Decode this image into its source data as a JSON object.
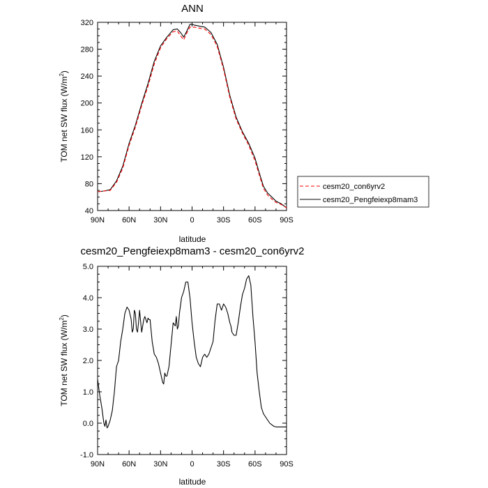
{
  "chart_data": [
    {
      "type": "line",
      "title": "ANN",
      "xlabel": "latitude",
      "ylabel_main": "TOM net SW flux (W/m",
      "ylabel_sup": "2",
      "ylabel_tail": ")",
      "xlim": [
        90,
        -90
      ],
      "ylim": [
        40,
        320
      ],
      "xticks": [
        90,
        60,
        30,
        0,
        -30,
        -60,
        -90
      ],
      "xtick_labels": [
        "90N",
        "60N",
        "30N",
        "0",
        "30S",
        "60S",
        "90S"
      ],
      "yticks": [
        40,
        80,
        120,
        160,
        200,
        240,
        280,
        320
      ],
      "ytick_labels": [
        "40",
        "80",
        "120",
        "160",
        "200",
        "240",
        "280",
        "320"
      ],
      "legend_position": "right",
      "series": [
        {
          "name": "cesm20_con6yrv2",
          "color": "#ff0000",
          "dash": "dashed",
          "x": [
            90,
            84,
            78,
            72,
            66,
            60,
            54,
            48,
            42,
            36,
            30,
            24,
            18,
            14,
            11,
            8,
            5,
            2,
            0,
            -2,
            -5,
            -8,
            -12,
            -18,
            -24,
            -30,
            -36,
            -42,
            -48,
            -54,
            -60,
            -64,
            -68,
            -72,
            -76,
            -80,
            -85,
            -90
          ],
          "y": [
            68,
            69,
            70,
            82,
            103,
            137,
            164,
            196,
            225,
            258,
            282,
            296,
            306,
            307,
            300,
            294,
            304,
            313,
            312,
            313,
            312,
            311,
            310,
            302,
            284,
            250,
            208,
            176,
            155,
            137,
            114,
            93,
            73,
            63,
            57,
            52,
            49,
            44
          ]
        },
        {
          "name": "cesm20_Pengfeiexp8mam3",
          "color": "#000000",
          "dash": "solid",
          "x": [
            90,
            84,
            78,
            72,
            66,
            60,
            54,
            48,
            42,
            36,
            30,
            24,
            18,
            14,
            11,
            8,
            5,
            2,
            0,
            -2,
            -5,
            -8,
            -12,
            -18,
            -24,
            -30,
            -36,
            -42,
            -48,
            -54,
            -60,
            -64,
            -68,
            -72,
            -76,
            -80,
            -85,
            -90
          ],
          "y": [
            68,
            69,
            71,
            84,
            106,
            140,
            167,
            199,
            229,
            262,
            285,
            298,
            309,
            310,
            305,
            298,
            307,
            317,
            317,
            316,
            315,
            314,
            313,
            305,
            287,
            253,
            211,
            179,
            157,
            140,
            118,
            96,
            76,
            66,
            60,
            54,
            50,
            44
          ]
        }
      ]
    },
    {
      "type": "line",
      "title": "cesm20_Pengfeiexp8mam3 - cesm20_con6yrv2",
      "xlabel": "latitude",
      "ylabel_main": "TOM net SW flux (W/m",
      "ylabel_sup": "2",
      "ylabel_tail": ")",
      "xlim": [
        90,
        -90
      ],
      "ylim": [
        -1,
        5
      ],
      "xticks": [
        90,
        60,
        30,
        0,
        -30,
        -60,
        -90
      ],
      "xtick_labels": [
        "90N",
        "60N",
        "30N",
        "0",
        "30S",
        "60S",
        "90S"
      ],
      "yticks": [
        -1,
        0,
        1,
        2,
        3,
        4,
        5
      ],
      "ytick_labels": [
        "-1.0",
        "0.0",
        "1.0",
        "2.0",
        "3.0",
        "4.0",
        "5.0"
      ],
      "series": [
        {
          "color": "#000000",
          "dash": "solid",
          "x": [
            90,
            88,
            86,
            84,
            83,
            82,
            81,
            80,
            78,
            76,
            74,
            72,
            70,
            68,
            66,
            64,
            62,
            60,
            58,
            57,
            56,
            55,
            54,
            53,
            52,
            51,
            50,
            48,
            46,
            45,
            44,
            43,
            42,
            41,
            40,
            38,
            36,
            34,
            32,
            30,
            28,
            27,
            26,
            25,
            24,
            22,
            20,
            18,
            16,
            15,
            14,
            13,
            12,
            10,
            8,
            6,
            4,
            2,
            0,
            -2,
            -4,
            -6,
            -8,
            -10,
            -12,
            -14,
            -16,
            -18,
            -20,
            -22,
            -24,
            -26,
            -28,
            -30,
            -32,
            -34,
            -36,
            -37,
            -38,
            -40,
            -42,
            -44,
            -46,
            -48,
            -50,
            -52,
            -54,
            -56,
            -58,
            -60,
            -62,
            -64,
            -66,
            -68,
            -70,
            -72,
            -74,
            -76,
            -78,
            -80,
            -84,
            -88,
            -90
          ],
          "y": [
            1.4,
            0.9,
            0.5,
            0.0,
            -0.1,
            0.1,
            -0.15,
            -0.1,
            0.1,
            0.4,
            1.0,
            1.8,
            2.0,
            2.6,
            3.0,
            3.5,
            3.7,
            3.6,
            3.3,
            2.9,
            3.0,
            3.6,
            3.5,
            3.0,
            2.9,
            3.2,
            3.6,
            2.9,
            3.3,
            3.4,
            3.3,
            3.2,
            3.35,
            3.3,
            3.3,
            2.6,
            2.2,
            2.1,
            1.9,
            1.6,
            1.3,
            1.25,
            1.6,
            1.5,
            1.5,
            1.8,
            2.5,
            3.2,
            3.1,
            3.4,
            3.0,
            3.1,
            3.5,
            4.0,
            4.2,
            4.5,
            4.5,
            4.0,
            3.2,
            2.6,
            2.1,
            1.9,
            1.8,
            2.1,
            2.2,
            2.1,
            2.2,
            2.4,
            2.6,
            3.3,
            3.8,
            3.8,
            3.6,
            3.8,
            3.7,
            3.5,
            3.2,
            3.1,
            2.9,
            2.8,
            2.8,
            3.2,
            3.7,
            4.1,
            4.3,
            4.6,
            4.7,
            4.4,
            3.4,
            2.6,
            1.6,
            1.0,
            0.5,
            0.3,
            0.2,
            0.1,
            0.0,
            -0.05,
            -0.1,
            -0.12,
            -0.12,
            -0.12,
            -0.12
          ]
        }
      ]
    }
  ]
}
